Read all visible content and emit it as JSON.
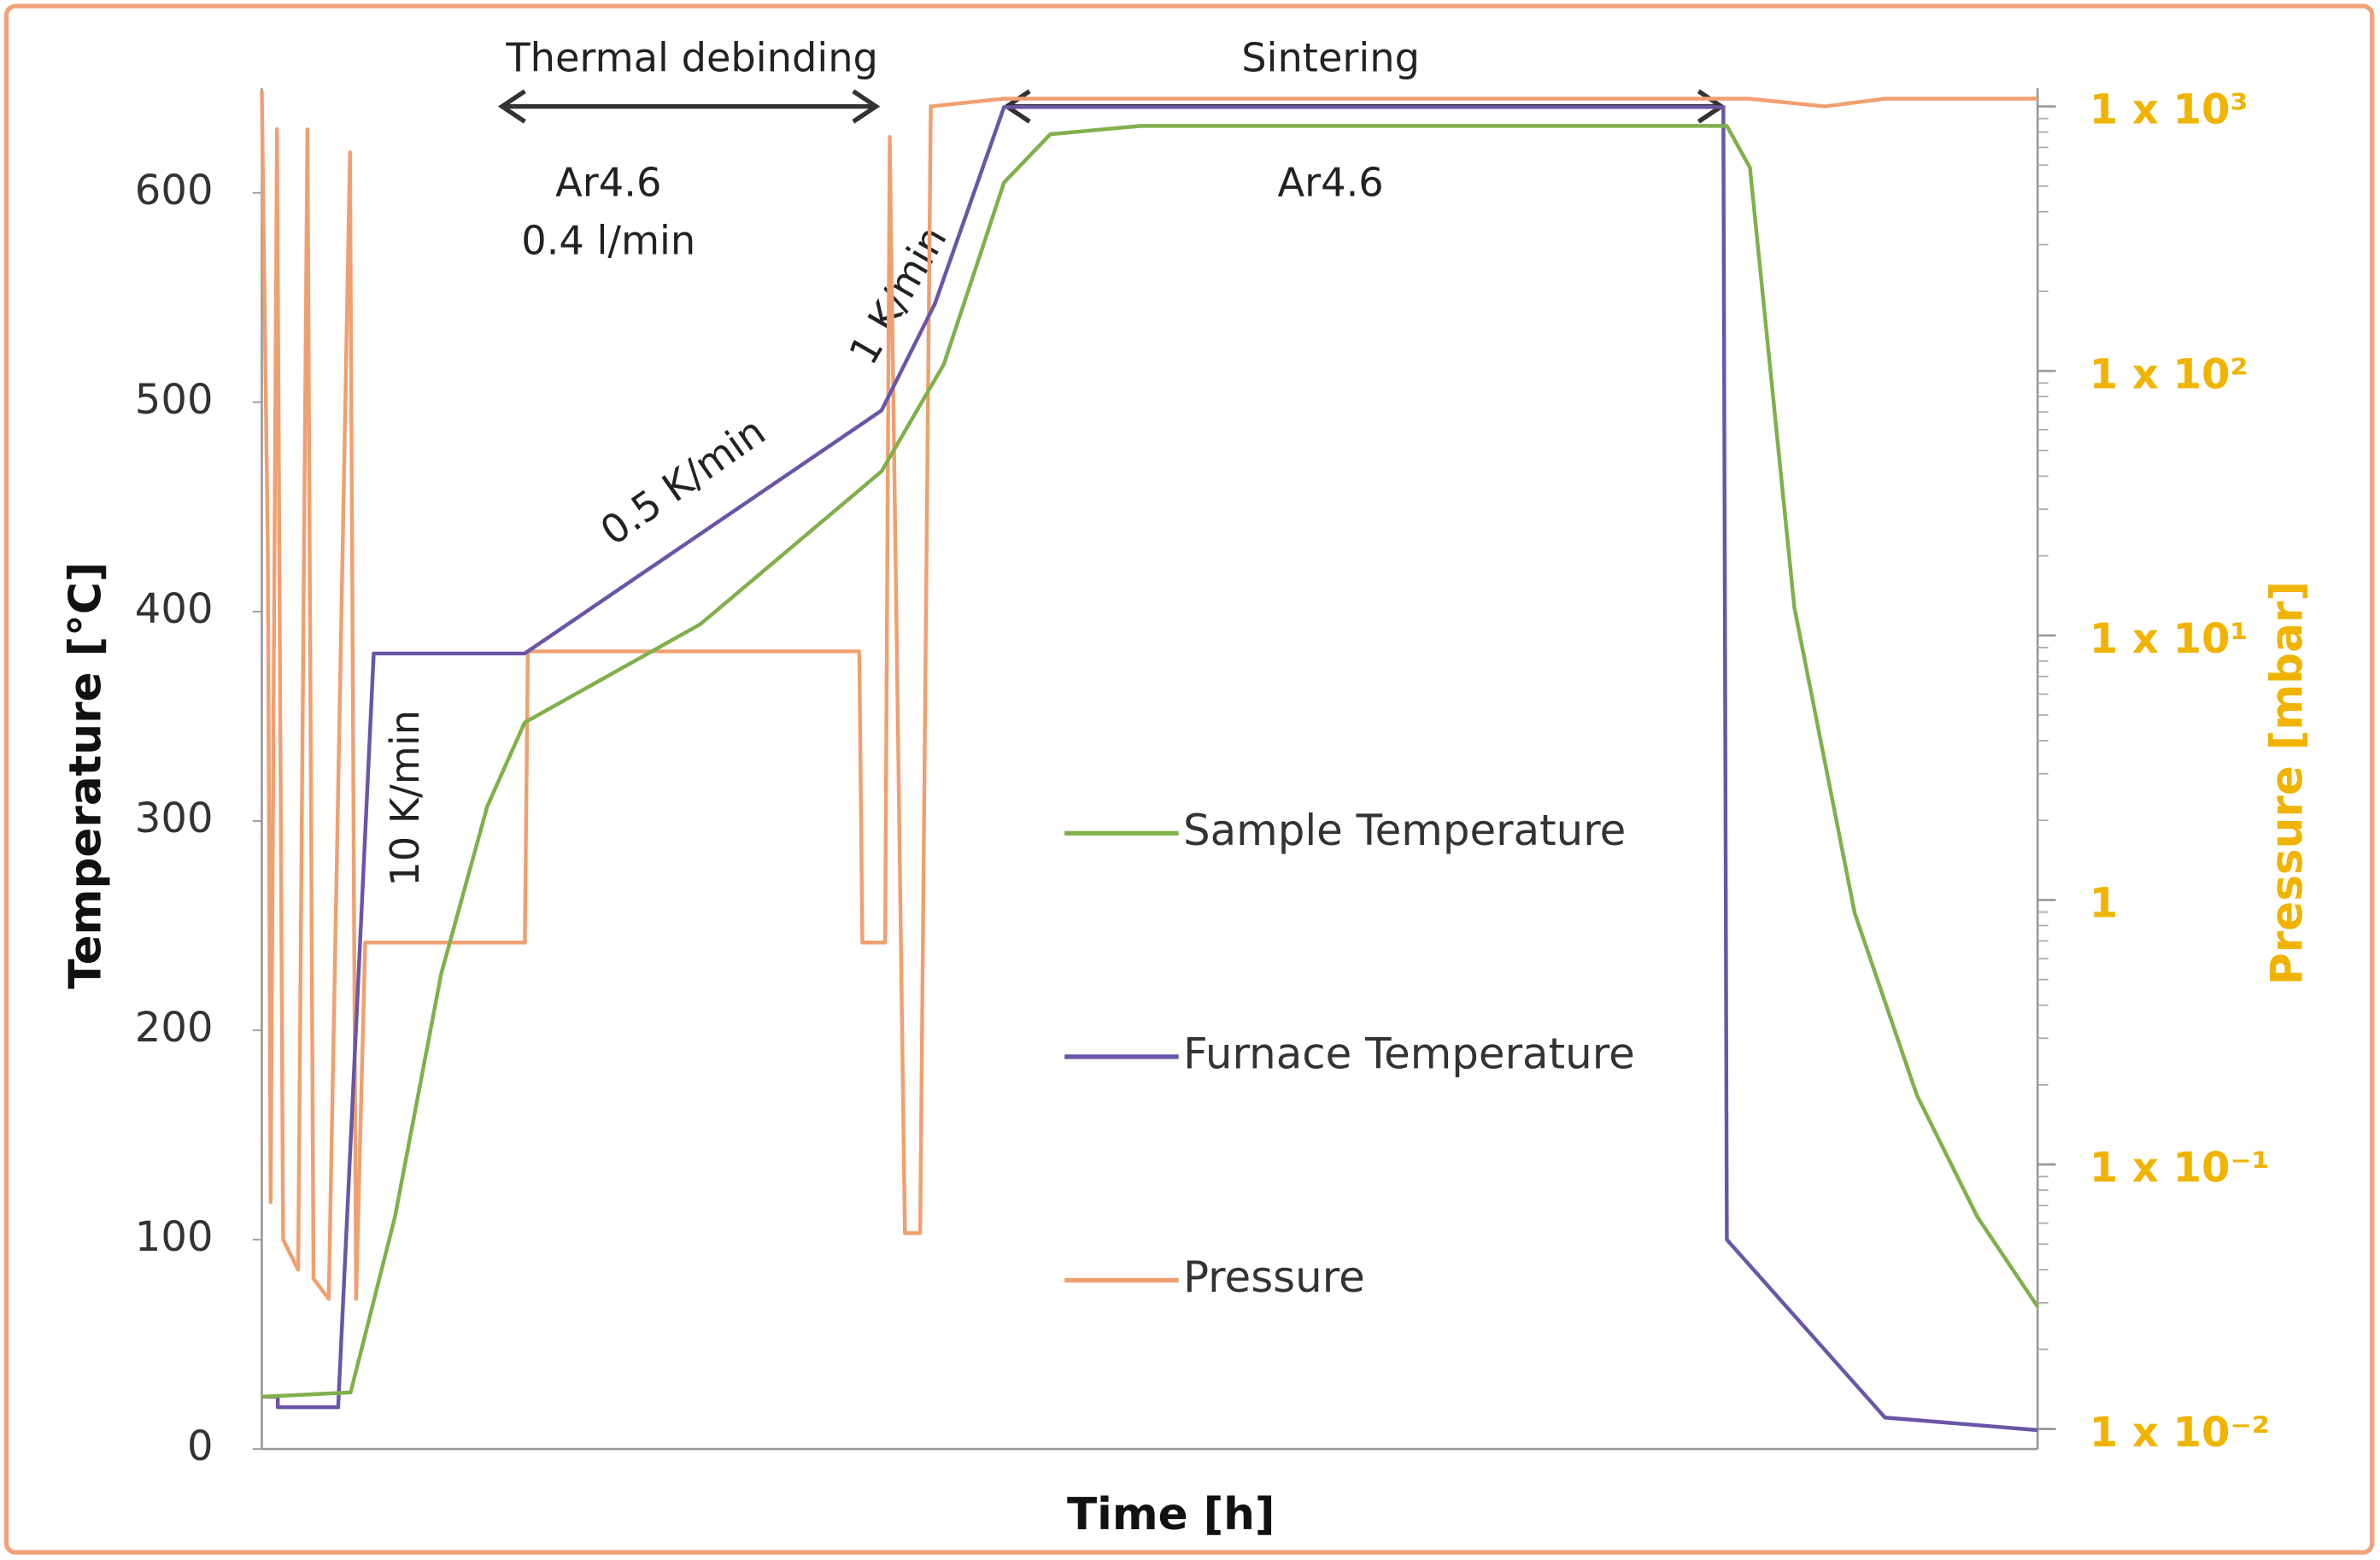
{
  "chart_data": {
    "type": "line",
    "xlabel": "Time [h]",
    "ylabel": "Temperature [°C]",
    "y2label": "Pressure [mbar]",
    "xlim": [
      0,
      100
    ],
    "ylim": [
      0,
      650
    ],
    "yticks": [
      0,
      100,
      200,
      300,
      400,
      500,
      600
    ],
    "y2lim": [
      0.0084,
      1172
    ],
    "y2scale": "log",
    "y2ticks": [
      {
        "value": 1000,
        "label": "1 x 10³"
      },
      {
        "value": 100,
        "label": "1 x 10²"
      },
      {
        "value": 10,
        "label": "1 x 10¹"
      },
      1,
      {
        "value": 0.1,
        "label": "1 x 10⁻¹"
      },
      {
        "value": 0.01,
        "label": "1 x 10⁻²"
      }
    ],
    "legend": "center",
    "annotations": [
      {
        "text": "Thermal debinding"
      },
      {
        "text": "Sintering"
      },
      {
        "text": "Ar4.6"
      },
      {
        "text": "0.4 l/min"
      },
      {
        "text": "Ar4.6"
      },
      {
        "text": "10 K/min"
      },
      {
        "text": "0.5 K/min"
      },
      {
        "text": "1 K/min"
      }
    ],
    "series": [
      {
        "name": "Sample Temperature",
        "color": "#7fb04a",
        "x": [
          0,
          5.0,
          7.5,
          10.1,
          12.7,
          14.8,
          24.7,
          34.9,
          38.4,
          41.8,
          44.4,
          49.5,
          82.5,
          83.8,
          86.3,
          89.7,
          93.2,
          96.6,
          100
        ],
        "values": [
          25,
          27,
          111,
          227,
          307,
          347,
          394,
          467,
          518,
          605,
          628,
          632,
          632,
          612,
          402,
          256,
          169,
          111,
          68
        ]
      },
      {
        "name": "Furnace Temperature",
        "color": "#6a55a8",
        "x": [
          0,
          0.9,
          0.9,
          4.3,
          6.3,
          14.8,
          34.9,
          37.9,
          41.8,
          82.3,
          82.5,
          91.4,
          100
        ],
        "values": [
          25,
          25,
          20,
          20,
          380,
          380,
          496,
          547,
          641,
          641,
          100,
          15,
          9
        ]
      },
      {
        "name": "Pressure",
        "color": "#f0a070",
        "axis": "y2",
        "x": [
          0,
          0.34,
          0.5,
          0.86,
          1.2,
          2.05,
          2.57,
          2.91,
          3.77,
          4.97,
          5.31,
          5.82,
          14.81,
          14.98,
          33.65,
          33.82,
          35.1,
          35.36,
          36.22,
          37.07,
          37.67,
          41.78,
          83.73,
          88.01,
          91.44,
          100
        ],
        "values": [
          1148,
          20,
          0.072,
          820,
          0.052,
          0.04,
          820,
          0.037,
          0.031,
          670,
          0.031,
          0.69,
          0.69,
          8.7,
          8.7,
          0.69,
          0.69,
          767,
          0.055,
          0.055,
          1000,
          1070,
          1070,
          1000,
          1070,
          1070
        ]
      }
    ]
  }
}
